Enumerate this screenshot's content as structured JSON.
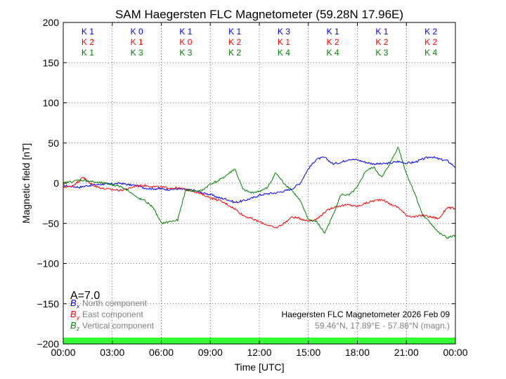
{
  "chart_data": {
    "type": "line",
    "title": "SAM Haegersten FLC Magnetometer (59.28N 17.96E)",
    "xlabel": "Time [UTC]",
    "ylabel": "Magnetic field [nT]",
    "xlim": [
      0,
      24
    ],
    "ylim": [
      -200,
      200
    ],
    "x_tick_labels": [
      "00:00",
      "03:00",
      "06:00",
      "09:00",
      "12:00",
      "15:00",
      "18:00",
      "21:00",
      "00:00"
    ],
    "y_ticks": [
      -200,
      -150,
      -100,
      -50,
      0,
      50,
      100,
      150,
      200
    ],
    "grid": true,
    "k_indices": {
      "interval_hours": 3,
      "rows": [
        {
          "component": "x",
          "color": "#0000ff",
          "labels": [
            "K 1",
            "K 0",
            "K 1",
            "K 1",
            "K 3",
            "K 1",
            "K 1",
            "K 2"
          ]
        },
        {
          "component": "y",
          "color": "#ff0000",
          "labels": [
            "K 2",
            "K 1",
            "K 0",
            "K 2",
            "K 1",
            "K 2",
            "K 2",
            "K 2"
          ]
        },
        {
          "component": "z",
          "color": "#008000",
          "labels": [
            "K 1",
            "K 3",
            "K 3",
            "K 2",
            "K 4",
            "K 4",
            "K 3",
            "K 4"
          ]
        }
      ]
    },
    "a_index": "A=7.0",
    "legend": {
      "placement": "bottom-left",
      "entries": [
        {
          "symbol": "B",
          "sub": "x",
          "label": "North component",
          "color": "#0000ff"
        },
        {
          "symbol": "B",
          "sub": "y",
          "label": "East component",
          "color": "#ff0000"
        },
        {
          "symbol": "B",
          "sub": "z",
          "label": "Vertical component",
          "color": "#008000"
        }
      ]
    },
    "annotation": {
      "line1": "Haegersten FLC Magnetometer 2026 Feb 09",
      "line2": "59.46°N, 17.89°E - 57.86°N (magn.)"
    },
    "status_bar_color": "#33ff33",
    "series": [
      {
        "name": "B_x",
        "color": "#0000ff",
        "x": [
          0,
          0.5,
          1,
          1.5,
          2,
          2.5,
          3,
          3.5,
          4,
          4.5,
          5,
          5.5,
          6,
          6.5,
          7,
          7.5,
          8,
          8.5,
          9,
          9.5,
          10,
          10.5,
          11,
          11.5,
          12,
          12.5,
          13,
          13.5,
          14,
          14.5,
          15,
          15.5,
          16,
          16.5,
          17,
          17.5,
          18,
          18.5,
          19,
          19.5,
          20,
          20.5,
          21,
          21.5,
          22,
          22.5,
          23,
          23.5,
          24
        ],
        "y": [
          -3,
          -4,
          -5,
          -3,
          -2,
          -1,
          -1,
          0,
          -2,
          -3,
          -6,
          -7,
          -7,
          -8,
          -7,
          -8,
          -9,
          -12,
          -14,
          -18,
          -20,
          -24,
          -22,
          -19,
          -15,
          -13,
          -12,
          -10,
          -7,
          0,
          18,
          30,
          32,
          24,
          26,
          30,
          29,
          26,
          24,
          24,
          25,
          27,
          25,
          26,
          30,
          33,
          30,
          28,
          20
        ]
      },
      {
        "name": "B_y",
        "color": "#ff0000",
        "x": [
          0,
          0.5,
          1,
          1.2,
          1.5,
          2,
          2.5,
          3,
          3.5,
          4,
          4.5,
          5,
          5.5,
          6,
          6.5,
          7,
          7.5,
          8,
          8.5,
          9,
          9.5,
          10,
          10.5,
          11,
          11.5,
          12,
          12.5,
          13,
          13.5,
          14,
          14.5,
          15,
          15.5,
          16,
          16.5,
          17,
          17.5,
          18,
          18.5,
          19,
          19.5,
          20,
          20.5,
          21,
          21.5,
          22,
          22.5,
          23,
          23.5,
          24
        ],
        "y": [
          -5,
          -4,
          3,
          8,
          2,
          -4,
          -7,
          -8,
          -9,
          -7,
          -3,
          -3,
          -4,
          -5,
          -6,
          -6,
          -8,
          -10,
          -14,
          -18,
          -21,
          -26,
          -32,
          -40,
          -44,
          -48,
          -52,
          -56,
          -50,
          -42,
          -44,
          -47,
          -45,
          -36,
          -30,
          -28,
          -27,
          -29,
          -25,
          -22,
          -20,
          -26,
          -30,
          -40,
          -42,
          -40,
          -42,
          -44,
          -30,
          -32
        ]
      },
      {
        "name": "B_z",
        "color": "#008000",
        "x": [
          0,
          0.5,
          1,
          1.5,
          2,
          2.5,
          3,
          3.5,
          4,
          4.5,
          5,
          5.5,
          6,
          6.5,
          7,
          7.5,
          8,
          8.5,
          9,
          9.5,
          10,
          10.5,
          11,
          11.5,
          12,
          12.5,
          13,
          13.5,
          14,
          14.5,
          15,
          15.5,
          16,
          16.5,
          17,
          17.5,
          18,
          18.5,
          19,
          19.5,
          20,
          20.5,
          21,
          21.5,
          22,
          22.5,
          23,
          23.5,
          24
        ],
        "y": [
          0,
          2,
          4,
          3,
          1,
          0,
          -2,
          -4,
          -9,
          -18,
          -22,
          -30,
          -50,
          -48,
          -46,
          -8,
          -10,
          -9,
          -1,
          3,
          10,
          18,
          -8,
          -12,
          -10,
          -6,
          13,
          0,
          -9,
          -22,
          -45,
          -48,
          -62,
          -40,
          -14,
          -15,
          -5,
          15,
          20,
          7,
          25,
          45,
          12,
          -12,
          -40,
          -50,
          -62,
          -68,
          -65
        ]
      }
    ]
  }
}
